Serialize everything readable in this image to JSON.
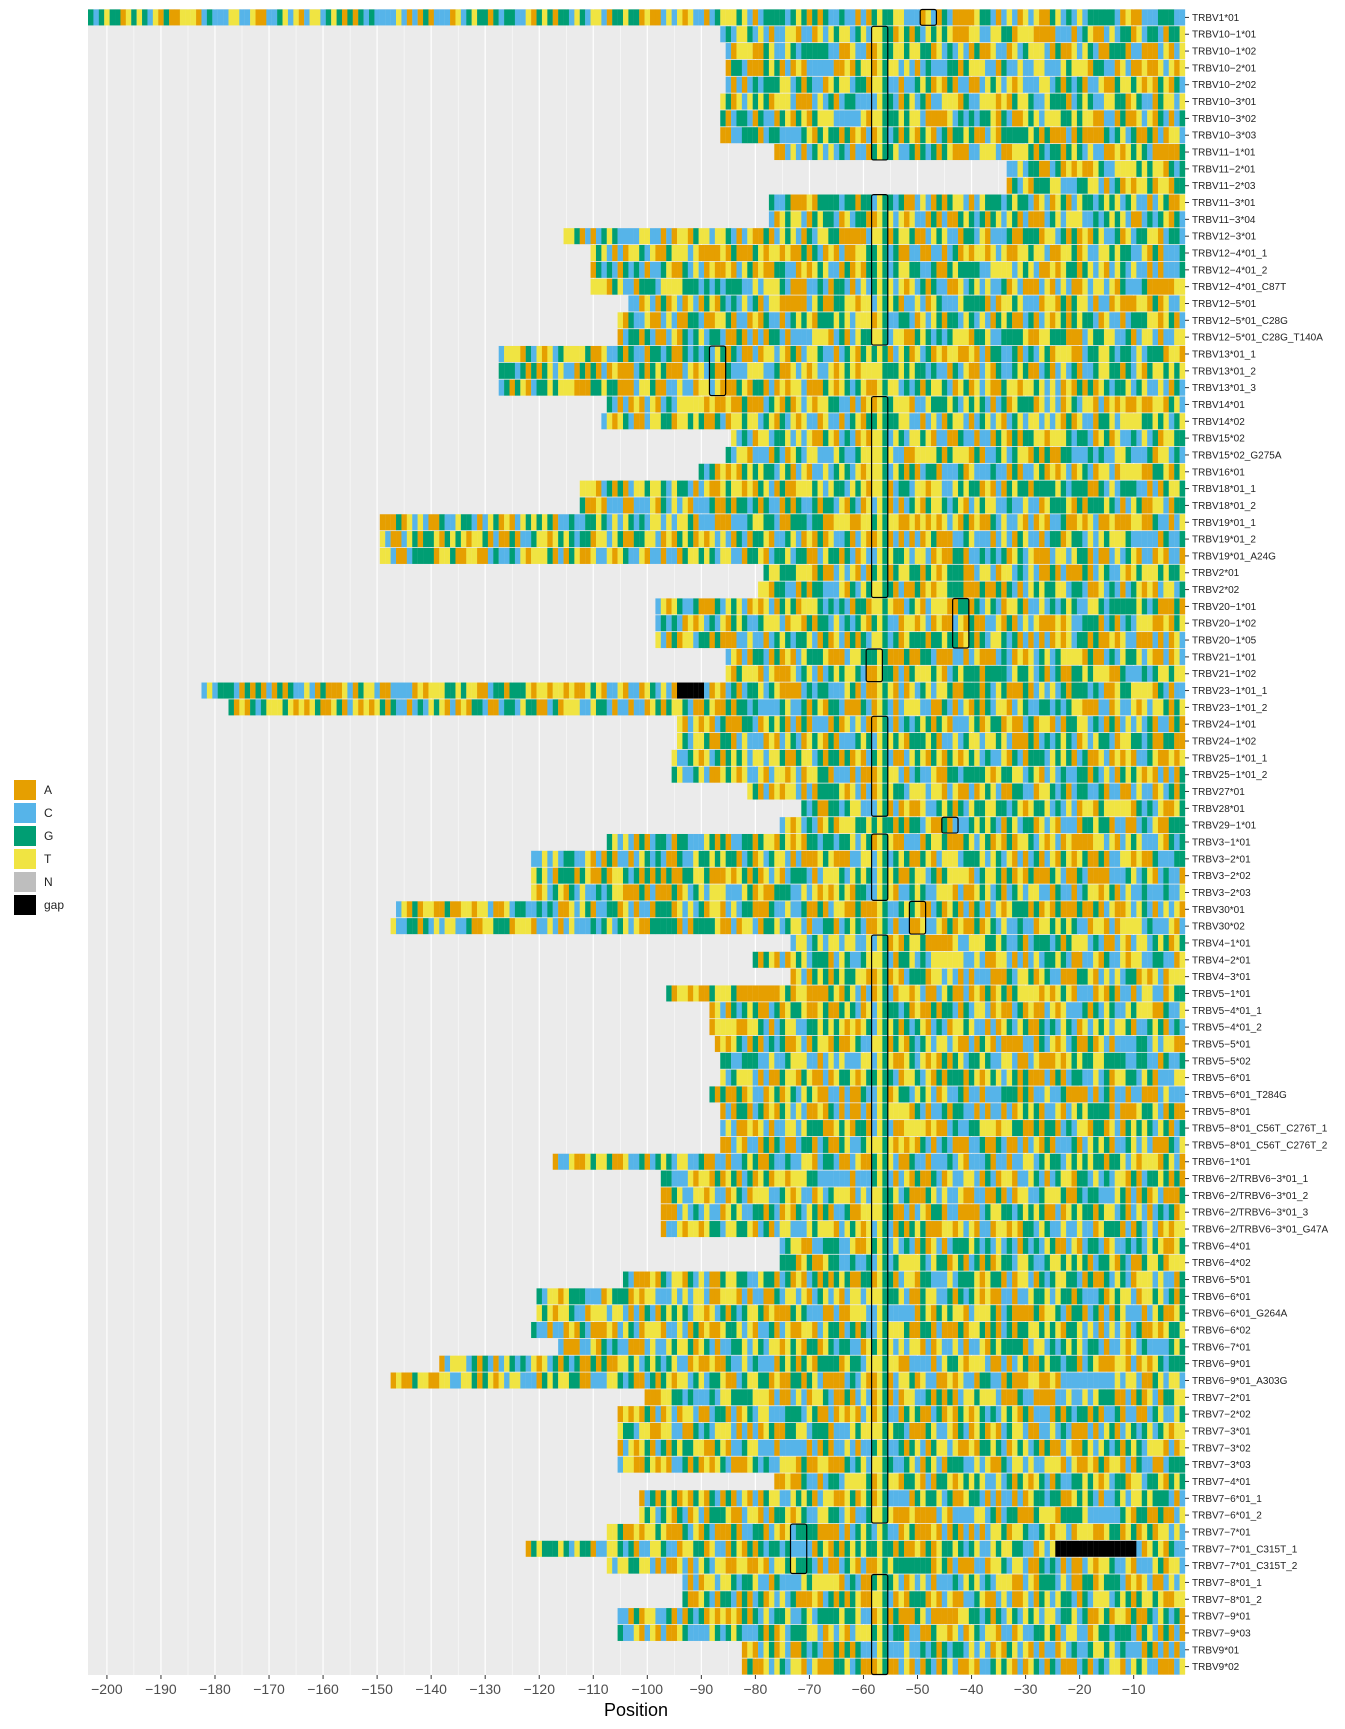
{
  "chart_data": {
    "type": "heatmap",
    "xlabel": "Position",
    "xlim": [
      -203,
      -1
    ],
    "x_ticks": [
      -200,
      -190,
      -180,
      -170,
      -160,
      -150,
      -140,
      -130,
      -120,
      -110,
      -100,
      -90,
      -80,
      -70,
      -60,
      -50,
      -40,
      -30,
      -20,
      -10
    ],
    "grid": true,
    "legend_position": "left",
    "legend": [
      {
        "key": "A",
        "label": "A",
        "color": "#E69F00"
      },
      {
        "key": "C",
        "label": "C",
        "color": "#56B4E9"
      },
      {
        "key": "G",
        "label": "G",
        "color": "#009E73"
      },
      {
        "key": "T",
        "label": "T",
        "color": "#F0E442"
      },
      {
        "key": "N",
        "label": "N",
        "color": "#BEBEBE"
      },
      {
        "key": "gap",
        "label": "gap",
        "color": "#000000"
      }
    ],
    "rows": [
      {
        "label": "TRBV1*01",
        "start": -203,
        "gaps": [],
        "boxes": [
          [
            -49,
            -47
          ]
        ]
      },
      {
        "label": "TRBV10−1*01",
        "start": -86,
        "gaps": [],
        "boxes": [
          [
            -58,
            -56
          ]
        ]
      },
      {
        "label": "TRBV10−1*02",
        "start": -85,
        "gaps": [],
        "boxes": [
          [
            -58,
            -56
          ]
        ]
      },
      {
        "label": "TRBV10−2*01",
        "start": -85,
        "gaps": [],
        "boxes": [
          [
            -58,
            -56
          ]
        ]
      },
      {
        "label": "TRBV10−2*02",
        "start": -85,
        "gaps": [],
        "boxes": [
          [
            -58,
            -56
          ]
        ]
      },
      {
        "label": "TRBV10−3*01",
        "start": -86,
        "gaps": [],
        "boxes": [
          [
            -58,
            -56
          ]
        ]
      },
      {
        "label": "TRBV10−3*02",
        "start": -86,
        "gaps": [],
        "boxes": [
          [
            -58,
            -56
          ]
        ]
      },
      {
        "label": "TRBV10−3*03",
        "start": -86,
        "gaps": [],
        "boxes": [
          [
            -58,
            -56
          ]
        ]
      },
      {
        "label": "TRBV11−1*01",
        "start": -76,
        "gaps": [],
        "boxes": [
          [
            -58,
            -56
          ]
        ]
      },
      {
        "label": "TRBV11−2*01",
        "start": -33,
        "gaps": [],
        "boxes": []
      },
      {
        "label": "TRBV11−2*03",
        "start": -33,
        "gaps": [],
        "boxes": []
      },
      {
        "label": "TRBV11−3*01",
        "start": -77,
        "gaps": [],
        "boxes": [
          [
            -58,
            -56
          ]
        ]
      },
      {
        "label": "TRBV11−3*04",
        "start": -77,
        "gaps": [],
        "boxes": [
          [
            -58,
            -56
          ]
        ]
      },
      {
        "label": "TRBV12−3*01",
        "start": -115,
        "gaps": [],
        "boxes": [
          [
            -58,
            -56
          ]
        ]
      },
      {
        "label": "TRBV12−4*01_1",
        "start": -110,
        "gaps": [],
        "boxes": [
          [
            -58,
            -56
          ]
        ]
      },
      {
        "label": "TRBV12−4*01_2",
        "start": -110,
        "gaps": [],
        "boxes": [
          [
            -58,
            -56
          ]
        ]
      },
      {
        "label": "TRBV12−4*01_C87T",
        "start": -110,
        "gaps": [],
        "boxes": [
          [
            -58,
            -56
          ]
        ]
      },
      {
        "label": "TRBV12−5*01",
        "start": -103,
        "gaps": [],
        "boxes": [
          [
            -58,
            -56
          ]
        ]
      },
      {
        "label": "TRBV12−5*01_C28G",
        "start": -105,
        "gaps": [],
        "boxes": [
          [
            -58,
            -56
          ]
        ]
      },
      {
        "label": "TRBV12−5*01_C28G_T140A",
        "start": -105,
        "gaps": [],
        "boxes": [
          [
            -58,
            -56
          ]
        ]
      },
      {
        "label": "TRBV13*01_1",
        "start": -127,
        "gaps": [],
        "boxes": [
          [
            -88,
            -86
          ]
        ]
      },
      {
        "label": "TRBV13*01_2",
        "start": -127,
        "gaps": [],
        "boxes": [
          [
            -88,
            -86
          ]
        ]
      },
      {
        "label": "TRBV13*01_3",
        "start": -127,
        "gaps": [],
        "boxes": [
          [
            -88,
            -86
          ]
        ]
      },
      {
        "label": "TRBV14*01",
        "start": -107,
        "gaps": [],
        "boxes": [
          [
            -58,
            -56
          ]
        ]
      },
      {
        "label": "TRBV14*02",
        "start": -108,
        "gaps": [],
        "boxes": [
          [
            -58,
            -56
          ]
        ]
      },
      {
        "label": "TRBV15*02",
        "start": -84,
        "gaps": [],
        "boxes": [
          [
            -58,
            -56
          ]
        ]
      },
      {
        "label": "TRBV15*02_G275A",
        "start": -85,
        "gaps": [],
        "boxes": [
          [
            -58,
            -56
          ]
        ]
      },
      {
        "label": "TRBV16*01",
        "start": -90,
        "gaps": [],
        "boxes": [
          [
            -58,
            -56
          ]
        ]
      },
      {
        "label": "TRBV18*01_1",
        "start": -112,
        "gaps": [],
        "boxes": [
          [
            -58,
            -56
          ]
        ]
      },
      {
        "label": "TRBV18*01_2",
        "start": -112,
        "gaps": [],
        "boxes": [
          [
            -58,
            -56
          ]
        ]
      },
      {
        "label": "TRBV19*01_1",
        "start": -149,
        "gaps": [],
        "boxes": [
          [
            -58,
            -56
          ]
        ]
      },
      {
        "label": "TRBV19*01_2",
        "start": -149,
        "gaps": [],
        "boxes": [
          [
            -58,
            -56
          ]
        ]
      },
      {
        "label": "TRBV19*01_A24G",
        "start": -149,
        "gaps": [],
        "boxes": [
          [
            -58,
            -56
          ]
        ]
      },
      {
        "label": "TRBV2*01",
        "start": -78,
        "gaps": [],
        "boxes": [
          [
            -58,
            -56
          ]
        ]
      },
      {
        "label": "TRBV2*02",
        "start": -79,
        "gaps": [],
        "boxes": [
          [
            -58,
            -56
          ]
        ]
      },
      {
        "label": "TRBV20−1*01",
        "start": -98,
        "gaps": [],
        "boxes": [
          [
            -43,
            -41
          ]
        ]
      },
      {
        "label": "TRBV20−1*02",
        "start": -98,
        "gaps": [],
        "boxes": [
          [
            -43,
            -41
          ]
        ]
      },
      {
        "label": "TRBV20−1*05",
        "start": -98,
        "gaps": [],
        "boxes": [
          [
            -43,
            -41
          ]
        ]
      },
      {
        "label": "TRBV21−1*01",
        "start": -85,
        "gaps": [],
        "boxes": [
          [
            -59,
            -57
          ]
        ]
      },
      {
        "label": "TRBV21−1*02",
        "start": -85,
        "gaps": [],
        "boxes": [
          [
            -59,
            -57
          ]
        ]
      },
      {
        "label": "TRBV23−1*01_1",
        "start": -182,
        "gaps": [
          [
            -94,
            -90
          ]
        ],
        "boxes": []
      },
      {
        "label": "TRBV23−1*01_2",
        "start": -177,
        "gaps": [],
        "boxes": []
      },
      {
        "label": "TRBV24−1*01",
        "start": -94,
        "gaps": [],
        "boxes": [
          [
            -58,
            -56
          ]
        ]
      },
      {
        "label": "TRBV24−1*02",
        "start": -94,
        "gaps": [],
        "boxes": [
          [
            -58,
            -56
          ]
        ]
      },
      {
        "label": "TRBV25−1*01_1",
        "start": -95,
        "gaps": [],
        "boxes": [
          [
            -58,
            -56
          ]
        ]
      },
      {
        "label": "TRBV25−1*01_2",
        "start": -95,
        "gaps": [],
        "boxes": [
          [
            -58,
            -56
          ]
        ]
      },
      {
        "label": "TRBV27*01",
        "start": -81,
        "gaps": [],
        "boxes": [
          [
            -58,
            -56
          ]
        ]
      },
      {
        "label": "TRBV28*01",
        "start": -71,
        "gaps": [],
        "boxes": [
          [
            -58,
            -56
          ]
        ]
      },
      {
        "label": "TRBV29−1*01",
        "start": -75,
        "gaps": [],
        "boxes": [
          [
            -45,
            -43
          ]
        ]
      },
      {
        "label": "TRBV3−1*01",
        "start": -107,
        "gaps": [],
        "boxes": [
          [
            -58,
            -56
          ]
        ]
      },
      {
        "label": "TRBV3−2*01",
        "start": -121,
        "gaps": [],
        "boxes": [
          [
            -58,
            -56
          ]
        ]
      },
      {
        "label": "TRBV3−2*02",
        "start": -121,
        "gaps": [],
        "boxes": [
          [
            -58,
            -56
          ]
        ]
      },
      {
        "label": "TRBV3−2*03",
        "start": -121,
        "gaps": [],
        "boxes": [
          [
            -58,
            -56
          ]
        ]
      },
      {
        "label": "TRBV30*01",
        "start": -146,
        "gaps": [],
        "boxes": [
          [
            -51,
            -49
          ]
        ]
      },
      {
        "label": "TRBV30*02",
        "start": -147,
        "gaps": [],
        "boxes": [
          [
            -51,
            -49
          ]
        ]
      },
      {
        "label": "TRBV4−1*01",
        "start": -73,
        "gaps": [],
        "boxes": [
          [
            -58,
            -56
          ]
        ]
      },
      {
        "label": "TRBV4−2*01",
        "start": -80,
        "gaps": [],
        "boxes": [
          [
            -58,
            -56
          ]
        ]
      },
      {
        "label": "TRBV4−3*01",
        "start": -73,
        "gaps": [],
        "boxes": [
          [
            -58,
            -56
          ]
        ]
      },
      {
        "label": "TRBV5−1*01",
        "start": -96,
        "gaps": [],
        "boxes": [
          [
            -58,
            -56
          ]
        ]
      },
      {
        "label": "TRBV5−4*01_1",
        "start": -88,
        "gaps": [],
        "boxes": [
          [
            -58,
            -56
          ]
        ]
      },
      {
        "label": "TRBV5−4*01_2",
        "start": -88,
        "gaps": [],
        "boxes": [
          [
            -58,
            -56
          ]
        ]
      },
      {
        "label": "TRBV5−5*01",
        "start": -87,
        "gaps": [],
        "boxes": [
          [
            -58,
            -56
          ]
        ]
      },
      {
        "label": "TRBV5−5*02",
        "start": -86,
        "gaps": [],
        "boxes": [
          [
            -58,
            -56
          ]
        ]
      },
      {
        "label": "TRBV5−6*01",
        "start": -86,
        "gaps": [],
        "boxes": [
          [
            -58,
            -56
          ]
        ]
      },
      {
        "label": "TRBV5−6*01_T284G",
        "start": -88,
        "gaps": [],
        "boxes": [
          [
            -58,
            -56
          ]
        ]
      },
      {
        "label": "TRBV5−8*01",
        "start": -86,
        "gaps": [],
        "boxes": [
          [
            -58,
            -56
          ]
        ]
      },
      {
        "label": "TRBV5−8*01_C56T_C276T_1",
        "start": -86,
        "gaps": [],
        "boxes": [
          [
            -58,
            -56
          ]
        ]
      },
      {
        "label": "TRBV5−8*01_C56T_C276T_2",
        "start": -86,
        "gaps": [],
        "boxes": [
          [
            -58,
            -56
          ]
        ]
      },
      {
        "label": "TRBV6−1*01",
        "start": -117,
        "gaps": [],
        "boxes": [
          [
            -58,
            -56
          ]
        ]
      },
      {
        "label": "TRBV6−2/TRBV6−3*01_1",
        "start": -97,
        "gaps": [],
        "boxes": [
          [
            -58,
            -56
          ]
        ]
      },
      {
        "label": "TRBV6−2/TRBV6−3*01_2",
        "start": -97,
        "gaps": [],
        "boxes": [
          [
            -58,
            -56
          ]
        ]
      },
      {
        "label": "TRBV6−2/TRBV6−3*01_3",
        "start": -97,
        "gaps": [],
        "boxes": [
          [
            -58,
            -56
          ]
        ]
      },
      {
        "label": "TRBV6−2/TRBV6−3*01_G47A",
        "start": -97,
        "gaps": [],
        "boxes": [
          [
            -58,
            -56
          ]
        ]
      },
      {
        "label": "TRBV6−4*01",
        "start": -75,
        "gaps": [],
        "boxes": [
          [
            -58,
            -56
          ]
        ]
      },
      {
        "label": "TRBV6−4*02",
        "start": -75,
        "gaps": [],
        "boxes": [
          [
            -58,
            -56
          ]
        ]
      },
      {
        "label": "TRBV6−5*01",
        "start": -104,
        "gaps": [],
        "boxes": [
          [
            -58,
            -56
          ]
        ]
      },
      {
        "label": "TRBV6−6*01",
        "start": -120,
        "gaps": [],
        "boxes": [
          [
            -58,
            -56
          ]
        ]
      },
      {
        "label": "TRBV6−6*01_G264A",
        "start": -120,
        "gaps": [],
        "boxes": [
          [
            -58,
            -56
          ]
        ]
      },
      {
        "label": "TRBV6−6*02",
        "start": -121,
        "gaps": [],
        "boxes": [
          [
            -58,
            -56
          ]
        ]
      },
      {
        "label": "TRBV6−7*01",
        "start": -116,
        "gaps": [],
        "boxes": [
          [
            -58,
            -56
          ]
        ]
      },
      {
        "label": "TRBV6−9*01",
        "start": -138,
        "gaps": [],
        "boxes": [
          [
            -58,
            -56
          ]
        ]
      },
      {
        "label": "TRBV6−9*01_A303G",
        "start": -147,
        "gaps": [],
        "boxes": [
          [
            -58,
            -56
          ]
        ]
      },
      {
        "label": "TRBV7−2*01",
        "start": -100,
        "gaps": [],
        "boxes": [
          [
            -58,
            -56
          ]
        ]
      },
      {
        "label": "TRBV7−2*02",
        "start": -105,
        "gaps": [],
        "boxes": [
          [
            -58,
            -56
          ]
        ]
      },
      {
        "label": "TRBV7−3*01",
        "start": -105,
        "gaps": [],
        "boxes": [
          [
            -58,
            -56
          ]
        ]
      },
      {
        "label": "TRBV7−3*02",
        "start": -105,
        "gaps": [],
        "boxes": [
          [
            -58,
            -56
          ]
        ]
      },
      {
        "label": "TRBV7−3*03",
        "start": -105,
        "gaps": [],
        "boxes": [
          [
            -58,
            -56
          ]
        ]
      },
      {
        "label": "TRBV7−4*01",
        "start": -76,
        "gaps": [],
        "boxes": [
          [
            -58,
            -56
          ]
        ]
      },
      {
        "label": "TRBV7−6*01_1",
        "start": -101,
        "gaps": [],
        "boxes": [
          [
            -58,
            -56
          ]
        ]
      },
      {
        "label": "TRBV7−6*01_2",
        "start": -101,
        "gaps": [],
        "boxes": [
          [
            -58,
            -56
          ]
        ]
      },
      {
        "label": "TRBV7−7*01",
        "start": -107,
        "gaps": [],
        "boxes": [
          [
            -73,
            -71
          ]
        ]
      },
      {
        "label": "TRBV7−7*01_C315T_1",
        "start": -122,
        "gaps": [
          [
            -24,
            -10
          ]
        ],
        "boxes": [
          [
            -73,
            -71
          ]
        ]
      },
      {
        "label": "TRBV7−7*01_C315T_2",
        "start": -107,
        "gaps": [],
        "boxes": [
          [
            -73,
            -71
          ]
        ]
      },
      {
        "label": "TRBV7−8*01_1",
        "start": -93,
        "gaps": [],
        "boxes": [
          [
            -58,
            -56
          ]
        ]
      },
      {
        "label": "TRBV7−8*01_2",
        "start": -93,
        "gaps": [],
        "boxes": [
          [
            -58,
            -56
          ]
        ]
      },
      {
        "label": "TRBV7−9*01",
        "start": -105,
        "gaps": [],
        "boxes": [
          [
            -58,
            -56
          ]
        ]
      },
      {
        "label": "TRBV7−9*03",
        "start": -105,
        "gaps": [],
        "boxes": [
          [
            -58,
            -56
          ]
        ]
      },
      {
        "label": "TRBV9*01",
        "start": -82,
        "gaps": [],
        "boxes": [
          [
            -58,
            -56
          ]
        ]
      },
      {
        "label": "TRBV9*02",
        "start": -82,
        "gaps": [],
        "boxes": [
          [
            -58,
            -56
          ]
        ]
      }
    ]
  }
}
